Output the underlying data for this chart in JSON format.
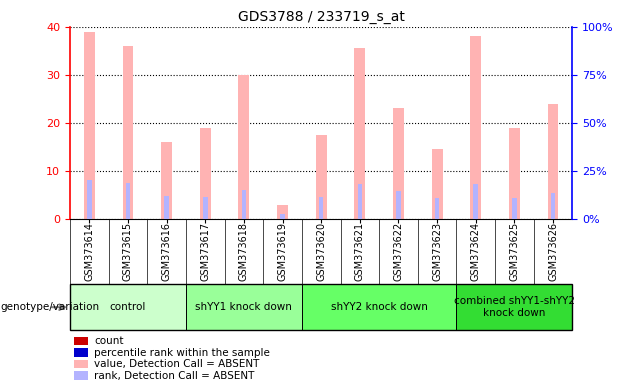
{
  "title": "GDS3788 / 233719_s_at",
  "samples": [
    "GSM373614",
    "GSM373615",
    "GSM373616",
    "GSM373617",
    "GSM373618",
    "GSM373619",
    "GSM373620",
    "GSM373621",
    "GSM373622",
    "GSM373623",
    "GSM373624",
    "GSM373625",
    "GSM373626"
  ],
  "absent_count": [
    39,
    36,
    16,
    19,
    30,
    2.8,
    17.5,
    35.5,
    23,
    14.5,
    38,
    19,
    24
  ],
  "absent_rank": [
    20,
    18.5,
    12,
    11.5,
    15,
    2.8,
    11.5,
    18,
    14.5,
    11,
    18,
    11,
    13.5
  ],
  "groups": [
    {
      "label": "control",
      "start": 0,
      "end": 3,
      "color": "#ccffcc"
    },
    {
      "label": "shYY1 knock down",
      "start": 3,
      "end": 6,
      "color": "#99ff99"
    },
    {
      "label": "shYY2 knock down",
      "start": 6,
      "end": 10,
      "color": "#66ff66"
    },
    {
      "label": "combined shYY1-shYY2\nknock down",
      "start": 10,
      "end": 13,
      "color": "#33dd33"
    }
  ],
  "ylim_left": [
    0,
    40
  ],
  "ylim_right": [
    0,
    100
  ],
  "yticks_left": [
    0,
    10,
    20,
    30,
    40
  ],
  "yticks_right": [
    0,
    25,
    50,
    75,
    100
  ],
  "absent_count_color": "#ffb3b3",
  "absent_rank_color": "#b3b3ff",
  "legend_items": [
    {
      "color": "#cc0000",
      "label": "count"
    },
    {
      "color": "#0000cc",
      "label": "percentile rank within the sample"
    },
    {
      "color": "#ffb3b3",
      "label": "value, Detection Call = ABSENT"
    },
    {
      "color": "#b3b3ff",
      "label": "rank, Detection Call = ABSENT"
    }
  ],
  "bg_color": "#ffffff",
  "sample_area_color": "#dddddd",
  "genotype_label": "genotype/variation"
}
